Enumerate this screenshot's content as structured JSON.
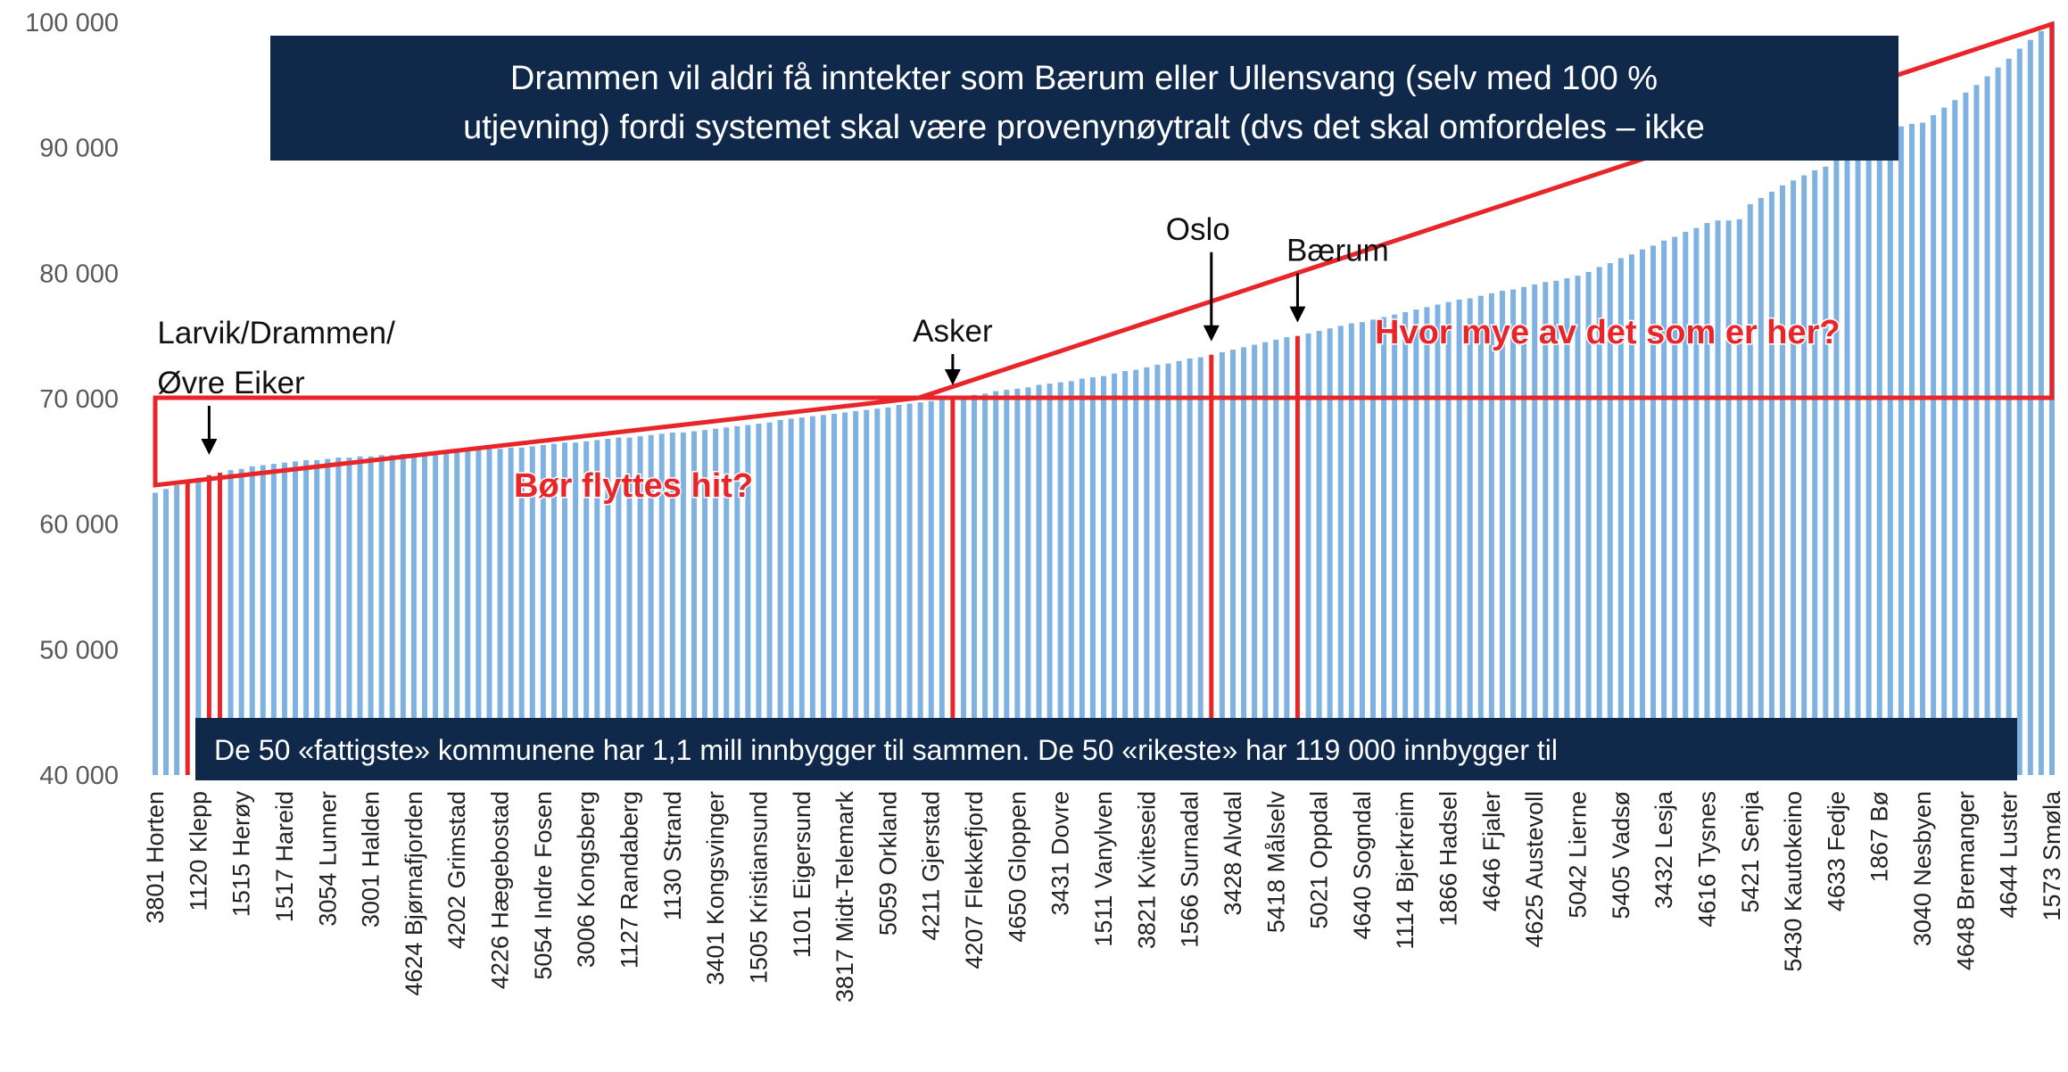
{
  "chart_data": {
    "type": "bar",
    "color": "#7fb2e0",
    "highlight_color": "#e8262a",
    "ylim": [
      40000,
      100000
    ],
    "yticks": [
      {
        "value": 40000,
        "label": "40 000"
      },
      {
        "value": 50000,
        "label": "50 000"
      },
      {
        "value": 60000,
        "label": "60 000"
      },
      {
        "value": 70000,
        "label": "70 000"
      },
      {
        "value": 80000,
        "label": "80 000"
      },
      {
        "value": 90000,
        "label": "90 000"
      },
      {
        "value": 100000,
        "label": "100 000"
      }
    ],
    "categories": [
      "3801 Horten",
      null,
      null,
      null,
      "1120 Klepp",
      null,
      null,
      null,
      "1515 Herøy",
      null,
      null,
      null,
      "1517 Hareid",
      null,
      null,
      null,
      "3054 Lunner",
      null,
      null,
      null,
      "3001 Halden",
      null,
      null,
      null,
      "4624 Bjørnafjorden",
      null,
      null,
      null,
      "4202 Grimstad",
      null,
      null,
      null,
      "4226 Hægebostad",
      null,
      null,
      null,
      "5054 Indre Fosen",
      null,
      null,
      null,
      "3006 Kongsberg",
      null,
      null,
      null,
      "1127 Randaberg",
      null,
      null,
      null,
      "1130 Strand",
      null,
      null,
      null,
      "3401 Kongsvinger",
      null,
      null,
      null,
      "1505 Kristiansund",
      null,
      null,
      null,
      "1101 Eigersund",
      null,
      null,
      null,
      "3817 Midt-Telemark",
      null,
      null,
      null,
      "5059 Orkland",
      null,
      null,
      null,
      "4211 Gjerstad",
      null,
      null,
      null,
      "4207 Flekkefjord",
      null,
      null,
      null,
      "4650 Gloppen",
      null,
      null,
      null,
      "3431 Dovre",
      null,
      null,
      null,
      "1511 Vanylven",
      null,
      null,
      null,
      "3821 Kviteseid",
      null,
      null,
      null,
      "1566 Surnadal",
      null,
      null,
      null,
      "3428 Alvdal",
      null,
      null,
      null,
      "5418 Målselv",
      null,
      null,
      null,
      "5021 Oppdal",
      null,
      null,
      null,
      "4640 Sogndal",
      null,
      null,
      null,
      "1114 Bjerkreim",
      null,
      null,
      null,
      "1866 Hadsel",
      null,
      null,
      null,
      "4646 Fjaler",
      null,
      null,
      null,
      "4625 Austevoll",
      null,
      null,
      null,
      "5042 Lierne",
      null,
      null,
      null,
      "5405 Vadsø",
      null,
      null,
      null,
      "3432 Lesja",
      null,
      null,
      null,
      "4616 Tysnes",
      null,
      null,
      null,
      "5421 Senja",
      null,
      null,
      null,
      "5430 Kautokeino",
      null,
      null,
      null,
      "4633 Fedje",
      null,
      null,
      null,
      "1867 Bø",
      null,
      null,
      null,
      "3040 Nesbyen",
      null,
      null,
      null,
      "4648 Bremanger",
      null,
      null,
      null,
      "4644 Luster",
      null,
      null,
      null,
      "1573 Smøla"
    ],
    "values": [
      62500,
      62800,
      63100,
      63400,
      63700,
      63900,
      64100,
      64300,
      64400,
      64600,
      64700,
      64800,
      64900,
      65000,
      65100,
      65100,
      65200,
      65300,
      65300,
      65400,
      65400,
      65500,
      65500,
      65600,
      65600,
      65700,
      65700,
      65800,
      65800,
      65900,
      65900,
      66000,
      66000,
      66100,
      66100,
      66200,
      66300,
      66400,
      66500,
      66500,
      66600,
      66700,
      66800,
      66900,
      66900,
      67000,
      67100,
      67200,
      67300,
      67300,
      67400,
      67500,
      67600,
      67700,
      67800,
      67900,
      68000,
      68100,
      68300,
      68400,
      68500,
      68600,
      68700,
      68800,
      68900,
      69000,
      69100,
      69200,
      69300,
      69500,
      69600,
      69700,
      69800,
      69900,
      70000,
      70200,
      70300,
      70400,
      70600,
      70700,
      70800,
      70900,
      71100,
      71200,
      71300,
      71400,
      71600,
      71700,
      71800,
      72000,
      72200,
      72300,
      72500,
      72700,
      72800,
      73000,
      73200,
      73300,
      73500,
      73700,
      73900,
      74100,
      74300,
      74500,
      74700,
      74900,
      75000,
      75200,
      75400,
      75600,
      75800,
      76000,
      76100,
      76300,
      76500,
      76700,
      76900,
      77100,
      77300,
      77500,
      77700,
      77900,
      78000,
      78200,
      78400,
      78600,
      78700,
      78900,
      79100,
      79300,
      79400,
      79600,
      79800,
      80100,
      80500,
      80800,
      81200,
      81500,
      81900,
      82200,
      82600,
      82900,
      83300,
      83600,
      84000,
      84200,
      84200,
      84300,
      85500,
      86000,
      86500,
      87000,
      87400,
      87800,
      88200,
      88500,
      89200,
      89900,
      90500,
      91000,
      91300,
      91500,
      91700,
      91900,
      92000,
      92600,
      93200,
      93800,
      94400,
      95000,
      95700,
      96400,
      97100,
      97900,
      98600,
      99300,
      100000
    ],
    "annotations": [
      {
        "lines": [
          "Larvik/Drammen/",
          "Øvre Eiker"
        ],
        "bars": [
          3,
          5,
          6
        ]
      },
      {
        "lines": [
          "Asker"
        ],
        "bars": [
          74
        ]
      },
      {
        "lines": [
          "Oslo"
        ],
        "bars": [
          98
        ]
      },
      {
        "lines": [
          "Bærum"
        ],
        "bars": [
          106
        ]
      }
    ],
    "callouts": [
      "Bør flyttes hit?",
      "Hvor mye av det som er her?"
    ],
    "top_box": [
      "Drammen vil aldri få inntekter som Bærum eller Ullensvang (selv med 100 %",
      "utjevning) fordi systemet skal være provenynøytralt (dvs det skal omfordeles – ikke"
    ],
    "bottom_box": "De 50 «fattigste» kommunene har 1,1 mill innbygger til sammen. De 50 «rikeste» har 119 000 innbygger til"
  }
}
